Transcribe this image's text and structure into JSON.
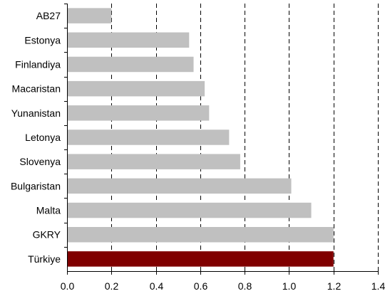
{
  "chart_data": {
    "type": "bar",
    "orientation": "horizontal",
    "categories": [
      "AB27",
      "Estonya",
      "Finlandiya",
      "Macaristan",
      "Yunanistan",
      "Letonya",
      "Slovenya",
      "Bulgaristan",
      "Malta",
      "GKRY",
      "Türkiye"
    ],
    "values": [
      0.2,
      0.55,
      0.57,
      0.62,
      0.64,
      0.73,
      0.78,
      1.01,
      1.1,
      1.2,
      1.2
    ],
    "highlight": "Türkiye",
    "colors": {
      "default_bar": "#c0c0c0",
      "highlight_bar": "#800000"
    },
    "xlim": [
      0.0,
      1.4
    ],
    "x_ticks": [
      "0.0",
      "0.2",
      "0.4",
      "0.6",
      "0.8",
      "1.0",
      "1.2",
      "1.4"
    ],
    "grid": "vertical dashed",
    "title": "",
    "xlabel": "",
    "ylabel": ""
  }
}
